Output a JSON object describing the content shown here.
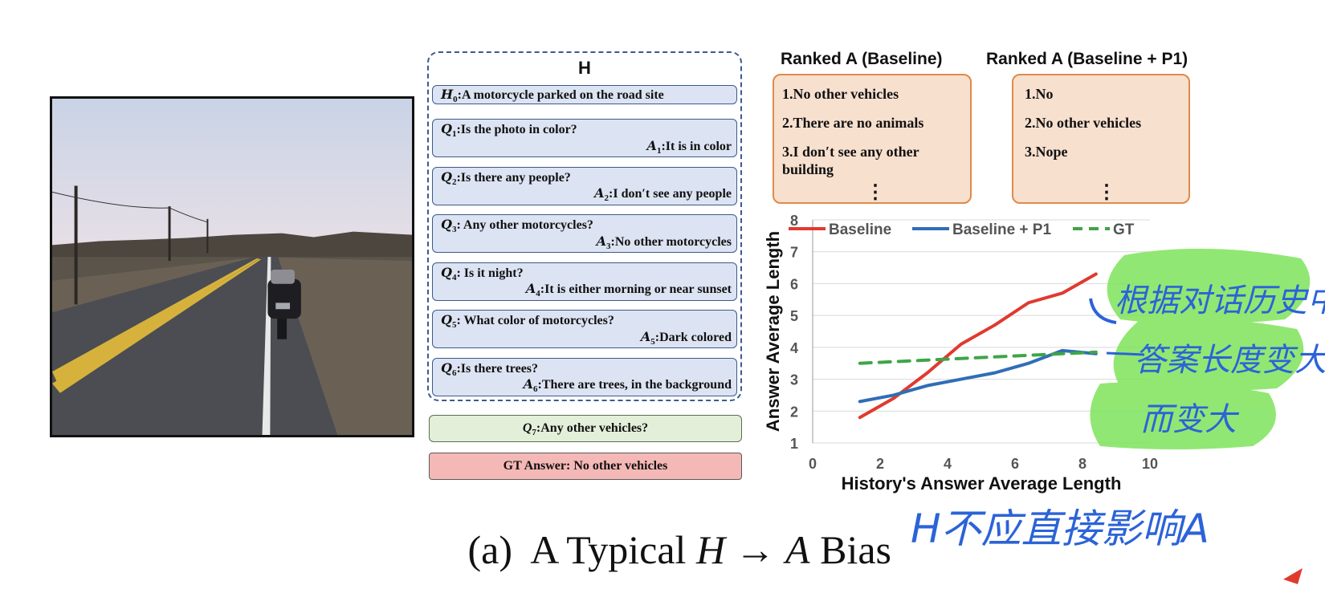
{
  "history": {
    "title": "H",
    "caption": {
      "tag": "H",
      "sub": "0",
      "text": ":A motorcycle parked on the road site"
    },
    "rounds": [
      {
        "q_sub": "1",
        "q": ":Is the photo in color?",
        "a_sub": "1",
        "a": ":It is in color"
      },
      {
        "q_sub": "2",
        "q": ":Is there any people?",
        "a_sub": "2",
        "a": ":I don′t see any people"
      },
      {
        "q_sub": "3",
        "q": ": Any other motorcycles?",
        "a_sub": "3",
        "a": ":No other motorcycles"
      },
      {
        "q_sub": "4",
        "q": ": Is it night?",
        "a_sub": "4",
        "a": ":It is either morning or near sunset"
      },
      {
        "q_sub": "5",
        "q": ": What color of motorcycles?",
        "a_sub": "5",
        "a": ":Dark colored"
      },
      {
        "q_sub": "6",
        "q": ":Is there trees?",
        "a_sub": "6",
        "a": ":There are trees, in the background"
      }
    ]
  },
  "question": {
    "sub": "7",
    "text": ":Any other vehicles?"
  },
  "gt_answer": "GT Answer: No other vehicles",
  "ranked_baseline": {
    "title": "Ranked A (Baseline)",
    "items": [
      "1.No other vehicles",
      "2.There are no animals",
      "3.I don′t see any other building"
    ]
  },
  "ranked_p1": {
    "title": "Ranked A (Baseline + P1)",
    "items": [
      "1.No",
      "2.No other vehicles",
      "3.Nope"
    ]
  },
  "chart_data": {
    "type": "line",
    "xlabel": "History's Answer Average Length",
    "ylabel": "Answer Average Length",
    "xlim": [
      0,
      10
    ],
    "ylim": [
      1,
      8
    ],
    "xticks": [
      0,
      2,
      4,
      6,
      8,
      10
    ],
    "yticks": [
      1,
      2,
      3,
      4,
      5,
      6,
      7,
      8
    ],
    "grid": true,
    "legend": "top",
    "series": [
      {
        "name": "Baseline",
        "color": "#e03a2f",
        "dash": false,
        "x": [
          1.4,
          2.4,
          3.4,
          4.4,
          5.4,
          6.4,
          7.4,
          8.4
        ],
        "y": [
          1.8,
          2.4,
          3.2,
          4.1,
          4.7,
          5.4,
          5.7,
          6.3
        ]
      },
      {
        "name": "Baseline + P1",
        "color": "#2f6eb6",
        "dash": false,
        "x": [
          1.4,
          2.4,
          3.4,
          4.4,
          5.4,
          6.4,
          7.4,
          8.4
        ],
        "y": [
          2.3,
          2.5,
          2.8,
          3.0,
          3.2,
          3.5,
          3.9,
          3.8
        ]
      },
      {
        "name": "GT",
        "color": "#3ea548",
        "dash": true,
        "x": [
          1.4,
          2.4,
          3.4,
          4.4,
          5.4,
          6.4,
          7.4,
          8.4
        ],
        "y": [
          3.5,
          3.55,
          3.6,
          3.65,
          3.7,
          3.75,
          3.8,
          3.85
        ]
      }
    ]
  },
  "caption": {
    "prefix": "(a)",
    "text1": "A Typical",
    "h": "H",
    "arrow": "→",
    "a": "A",
    "text2": "Bias"
  },
  "handwriting": [
    "根据对话历史中",
    "答案长度变大",
    "而变大",
    "H不应直接影响A"
  ],
  "colors": {
    "ink_blue": "#2b63d8",
    "highlight_green": "#7ee35a"
  }
}
